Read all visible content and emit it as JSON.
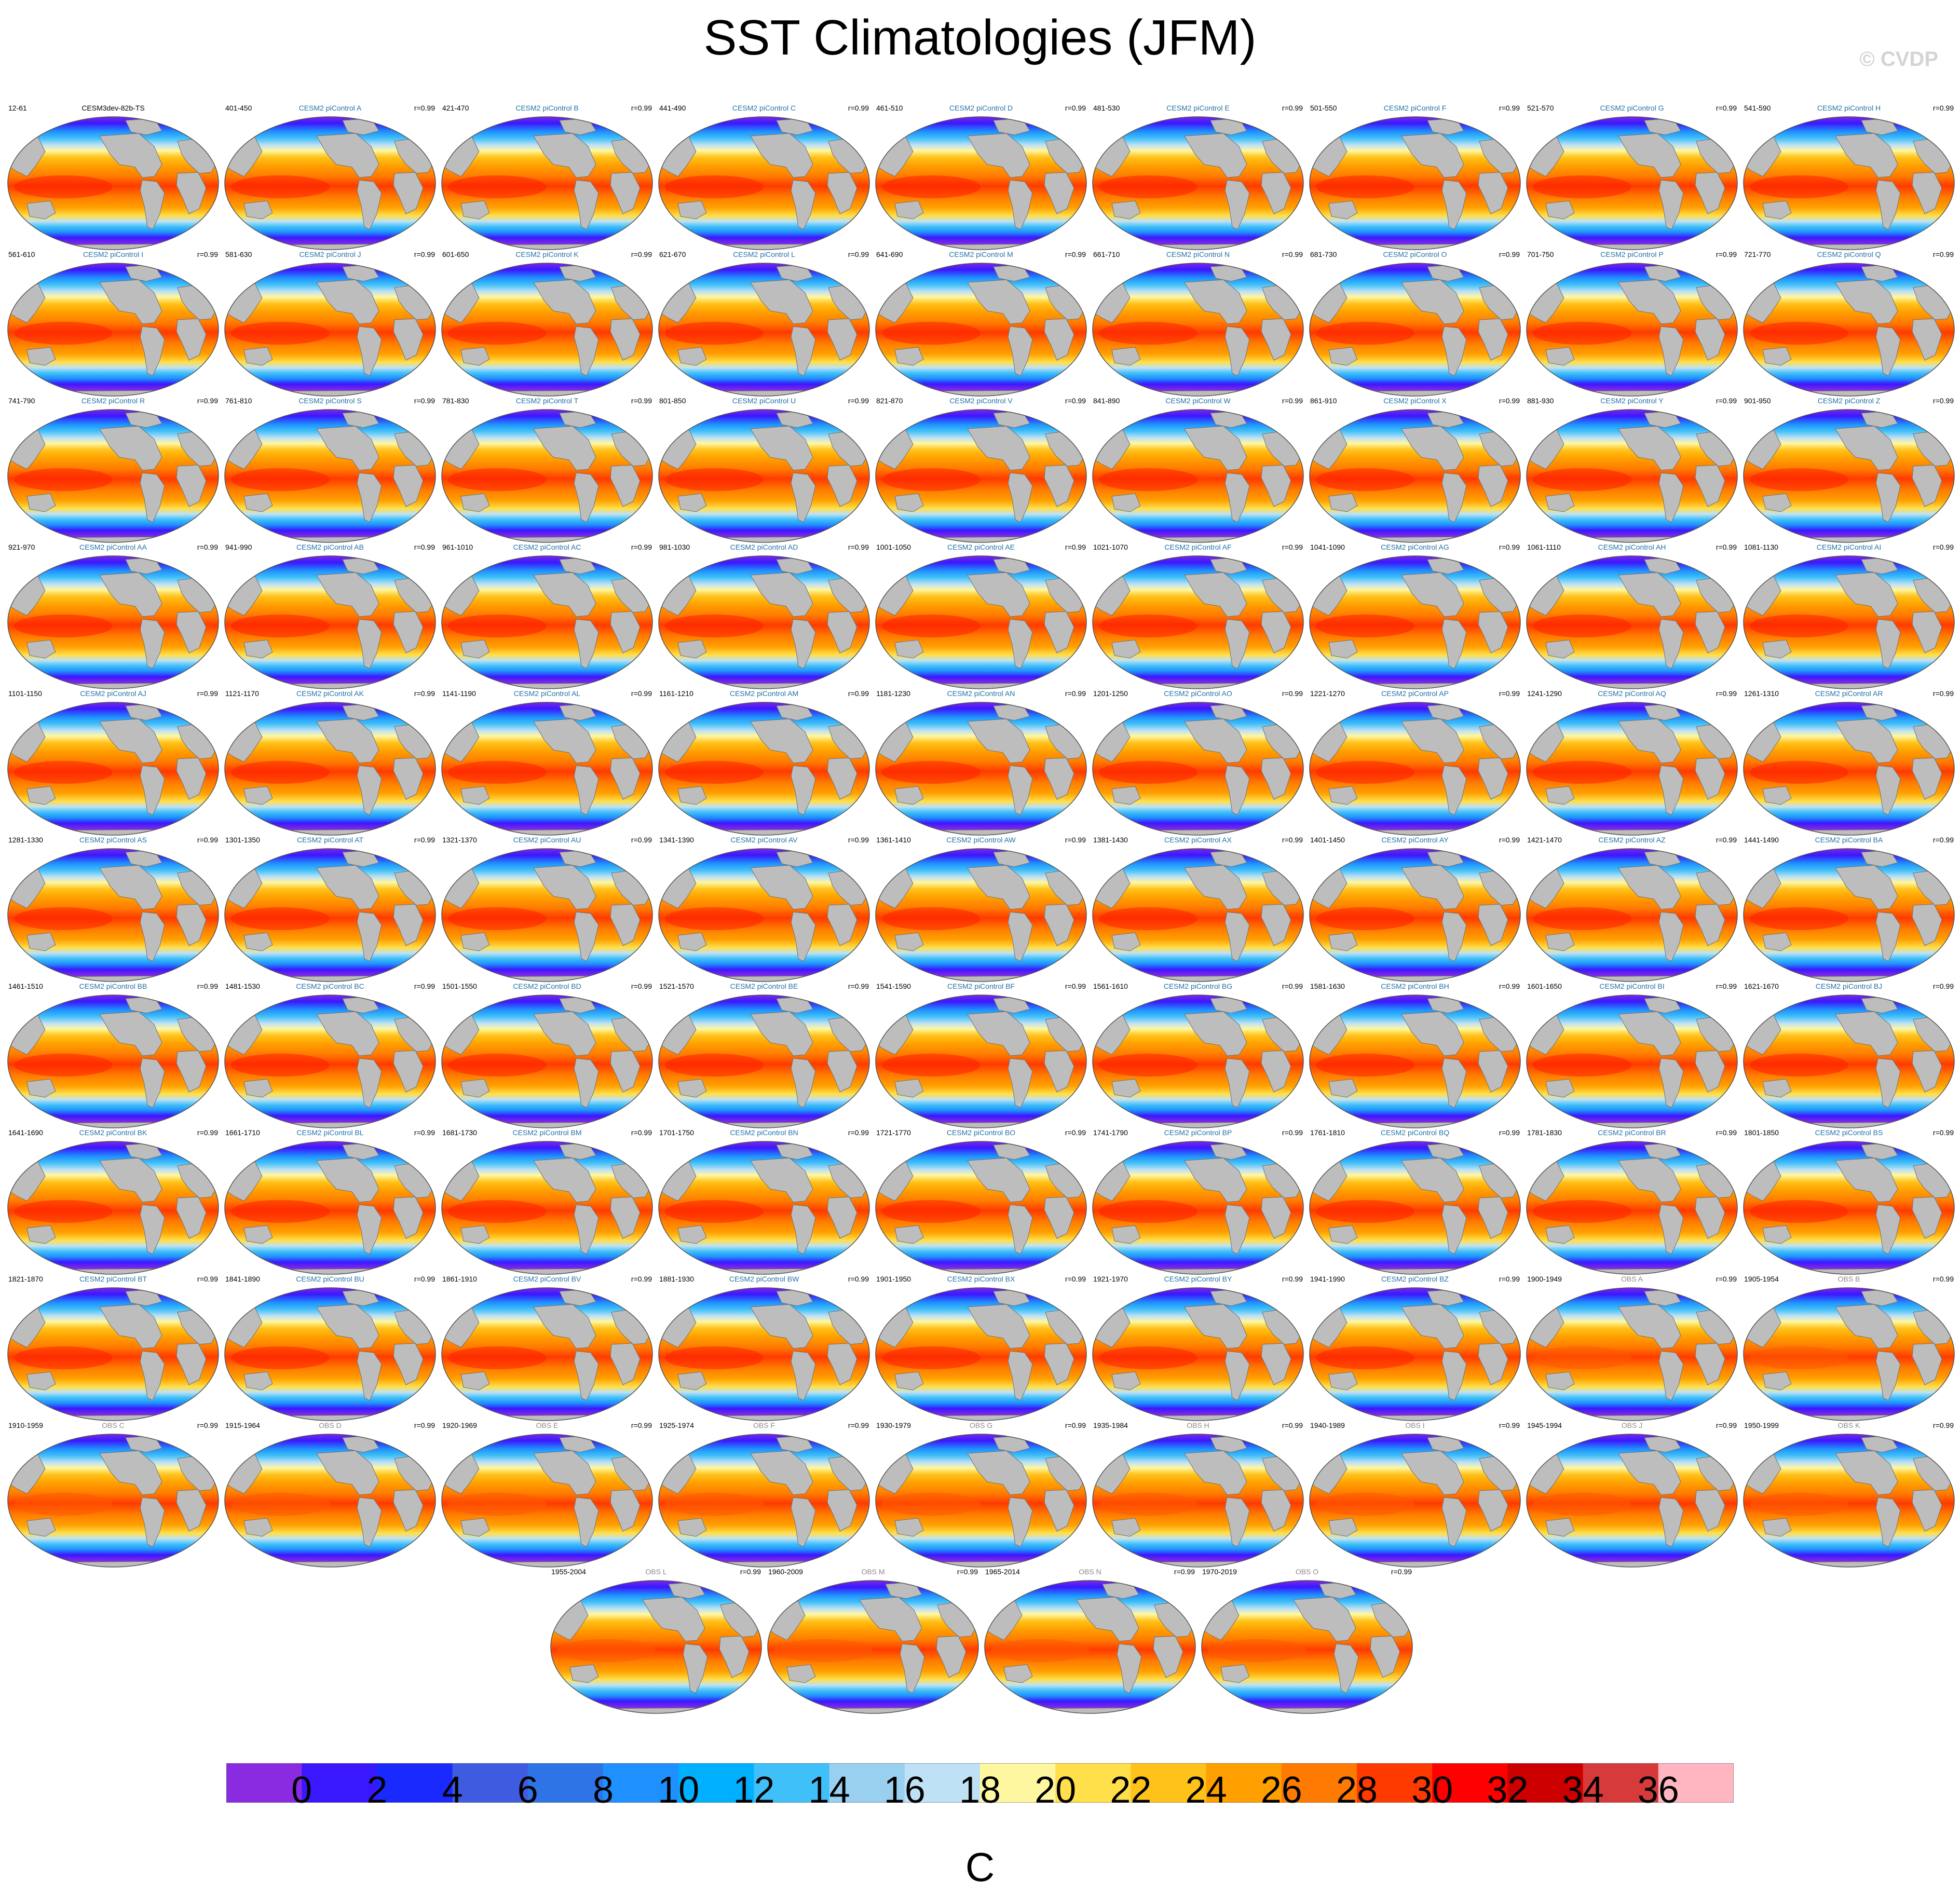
{
  "title": "SST Climatologies (JFM)",
  "copyright": "© CVDP",
  "chart_data": {
    "type": "map-panel-grid",
    "variable": "SST",
    "season": "JFM",
    "units": "C",
    "colorbar": {
      "ticks": [
        "0",
        "2",
        "4",
        "6",
        "8",
        "10",
        "12",
        "14",
        "16",
        "18",
        "20",
        "22",
        "24",
        "26",
        "28",
        "30",
        "32",
        "34",
        "36"
      ],
      "colors": [
        "#8a2be2",
        "#3a18ff",
        "#1a2aff",
        "#3f5be0",
        "#2f74e6",
        "#1e90ff",
        "#00b0ff",
        "#40c0f8",
        "#99d0ef",
        "#bfe1f5",
        "#fff7a0",
        "#ffe04a",
        "#ffc21a",
        "#ffa000",
        "#ff7a00",
        "#ff3a00",
        "#ff0000",
        "#cc0000",
        "#d63a3a",
        "#ffb6c1"
      ]
    },
    "panels": [
      {
        "name": "CESM3dev-82b-TS",
        "period": "12-61",
        "r": ""
      },
      {
        "name": "CESM2 piControl A",
        "period": "401-450",
        "r": "r=0.99"
      },
      {
        "name": "CESM2 piControl B",
        "period": "421-470",
        "r": "r=0.99"
      },
      {
        "name": "CESM2 piControl C",
        "period": "441-490",
        "r": "r=0.99"
      },
      {
        "name": "CESM2 piControl D",
        "period": "461-510",
        "r": "r=0.99"
      },
      {
        "name": "CESM2 piControl E",
        "period": "481-530",
        "r": "r=0.99"
      },
      {
        "name": "CESM2 piControl F",
        "period": "501-550",
        "r": "r=0.99"
      },
      {
        "name": "CESM2 piControl G",
        "period": "521-570",
        "r": "r=0.99"
      },
      {
        "name": "CESM2 piControl H",
        "period": "541-590",
        "r": "r=0.99"
      },
      {
        "name": "CESM2 piControl I",
        "period": "561-610",
        "r": "r=0.99"
      },
      {
        "name": "CESM2 piControl J",
        "period": "581-630",
        "r": "r=0.99"
      },
      {
        "name": "CESM2 piControl K",
        "period": "601-650",
        "r": "r=0.99"
      },
      {
        "name": "CESM2 piControl L",
        "period": "621-670",
        "r": "r=0.99"
      },
      {
        "name": "CESM2 piControl M",
        "period": "641-690",
        "r": "r=0.99"
      },
      {
        "name": "CESM2 piControl N",
        "period": "661-710",
        "r": "r=0.99"
      },
      {
        "name": "CESM2 piControl O",
        "period": "681-730",
        "r": "r=0.99"
      },
      {
        "name": "CESM2 piControl P",
        "period": "701-750",
        "r": "r=0.99"
      },
      {
        "name": "CESM2 piControl Q",
        "period": "721-770",
        "r": "r=0.99"
      },
      {
        "name": "CESM2 piControl R",
        "period": "741-790",
        "r": "r=0.99"
      },
      {
        "name": "CESM2 piControl S",
        "period": "761-810",
        "r": "r=0.99"
      },
      {
        "name": "CESM2 piControl T",
        "period": "781-830",
        "r": "r=0.99"
      },
      {
        "name": "CESM2 piControl U",
        "period": "801-850",
        "r": "r=0.99"
      },
      {
        "name": "CESM2 piControl V",
        "period": "821-870",
        "r": "r=0.99"
      },
      {
        "name": "CESM2 piControl W",
        "period": "841-890",
        "r": "r=0.99"
      },
      {
        "name": "CESM2 piControl X",
        "period": "861-910",
        "r": "r=0.99"
      },
      {
        "name": "CESM2 piControl Y",
        "period": "881-930",
        "r": "r=0.99"
      },
      {
        "name": "CESM2 piControl Z",
        "period": "901-950",
        "r": "r=0.99"
      },
      {
        "name": "CESM2 piControl AA",
        "period": "921-970",
        "r": "r=0.99"
      },
      {
        "name": "CESM2 piControl AB",
        "period": "941-990",
        "r": "r=0.99"
      },
      {
        "name": "CESM2 piControl AC",
        "period": "961-1010",
        "r": "r=0.99"
      },
      {
        "name": "CESM2 piControl AD",
        "period": "981-1030",
        "r": "r=0.99"
      },
      {
        "name": "CESM2 piControl AE",
        "period": "1001-1050",
        "r": "r=0.99"
      },
      {
        "name": "CESM2 piControl AF",
        "period": "1021-1070",
        "r": "r=0.99"
      },
      {
        "name": "CESM2 piControl AG",
        "period": "1041-1090",
        "r": "r=0.99"
      },
      {
        "name": "CESM2 piControl AH",
        "period": "1061-1110",
        "r": "r=0.99"
      },
      {
        "name": "CESM2 piControl AI",
        "period": "1081-1130",
        "r": "r=0.99"
      },
      {
        "name": "CESM2 piControl AJ",
        "period": "1101-1150",
        "r": "r=0.99"
      },
      {
        "name": "CESM2 piControl AK",
        "period": "1121-1170",
        "r": "r=0.99"
      },
      {
        "name": "CESM2 piControl AL",
        "period": "1141-1190",
        "r": "r=0.99"
      },
      {
        "name": "CESM2 piControl AM",
        "period": "1161-1210",
        "r": "r=0.99"
      },
      {
        "name": "CESM2 piControl AN",
        "period": "1181-1230",
        "r": "r=0.99"
      },
      {
        "name": "CESM2 piControl AO",
        "period": "1201-1250",
        "r": "r=0.99"
      },
      {
        "name": "CESM2 piControl AP",
        "period": "1221-1270",
        "r": "r=0.99"
      },
      {
        "name": "CESM2 piControl AQ",
        "period": "1241-1290",
        "r": "r=0.99"
      },
      {
        "name": "CESM2 piControl AR",
        "period": "1261-1310",
        "r": "r=0.99"
      },
      {
        "name": "CESM2 piControl AS",
        "period": "1281-1330",
        "r": "r=0.99"
      },
      {
        "name": "CESM2 piControl AT",
        "period": "1301-1350",
        "r": "r=0.99"
      },
      {
        "name": "CESM2 piControl AU",
        "period": "1321-1370",
        "r": "r=0.99"
      },
      {
        "name": "CESM2 piControl AV",
        "period": "1341-1390",
        "r": "r=0.99"
      },
      {
        "name": "CESM2 piControl AW",
        "period": "1361-1410",
        "r": "r=0.99"
      },
      {
        "name": "CESM2 piControl AX",
        "period": "1381-1430",
        "r": "r=0.99"
      },
      {
        "name": "CESM2 piControl AY",
        "period": "1401-1450",
        "r": "r=0.99"
      },
      {
        "name": "CESM2 piControl AZ",
        "period": "1421-1470",
        "r": "r=0.99"
      },
      {
        "name": "CESM2 piControl BA",
        "period": "1441-1490",
        "r": "r=0.99"
      },
      {
        "name": "CESM2 piControl BB",
        "period": "1461-1510",
        "r": "r=0.99"
      },
      {
        "name": "CESM2 piControl BC",
        "period": "1481-1530",
        "r": "r=0.99"
      },
      {
        "name": "CESM2 piControl BD",
        "period": "1501-1550",
        "r": "r=0.99"
      },
      {
        "name": "CESM2 piControl BE",
        "period": "1521-1570",
        "r": "r=0.99"
      },
      {
        "name": "CESM2 piControl BF",
        "period": "1541-1590",
        "r": "r=0.99"
      },
      {
        "name": "CESM2 piControl BG",
        "period": "1561-1610",
        "r": "r=0.99"
      },
      {
        "name": "CESM2 piControl BH",
        "period": "1581-1630",
        "r": "r=0.99"
      },
      {
        "name": "CESM2 piControl BI",
        "period": "1601-1650",
        "r": "r=0.99"
      },
      {
        "name": "CESM2 piControl BJ",
        "period": "1621-1670",
        "r": "r=0.99"
      },
      {
        "name": "CESM2 piControl BK",
        "period": "1641-1690",
        "r": "r=0.99"
      },
      {
        "name": "CESM2 piControl BL",
        "period": "1661-1710",
        "r": "r=0.99"
      },
      {
        "name": "CESM2 piControl BM",
        "period": "1681-1730",
        "r": "r=0.99"
      },
      {
        "name": "CESM2 piControl BN",
        "period": "1701-1750",
        "r": "r=0.99"
      },
      {
        "name": "CESM2 piControl BO",
        "period": "1721-1770",
        "r": "r=0.99"
      },
      {
        "name": "CESM2 piControl BP",
        "period": "1741-1790",
        "r": "r=0.99"
      },
      {
        "name": "CESM2 piControl BQ",
        "period": "1761-1810",
        "r": "r=0.99"
      },
      {
        "name": "CESM2 piControl BR",
        "period": "1781-1830",
        "r": "r=0.99"
      },
      {
        "name": "CESM2 piControl BS",
        "period": "1801-1850",
        "r": "r=0.99"
      },
      {
        "name": "CESM2 piControl BT",
        "period": "1821-1870",
        "r": "r=0.99"
      },
      {
        "name": "CESM2 piControl BU",
        "period": "1841-1890",
        "r": "r=0.99"
      },
      {
        "name": "CESM2 piControl BV",
        "period": "1861-1910",
        "r": "r=0.99"
      },
      {
        "name": "CESM2 piControl BW",
        "period": "1881-1930",
        "r": "r=0.99"
      },
      {
        "name": "CESM2 piControl BX",
        "period": "1901-1950",
        "r": "r=0.99"
      },
      {
        "name": "CESM2 piControl BY",
        "period": "1921-1970",
        "r": "r=0.99"
      },
      {
        "name": "CESM2 piControl BZ",
        "period": "1941-1990",
        "r": "r=0.99"
      },
      {
        "name": "OBS A",
        "period": "1900-1949",
        "r": "r=0.99"
      },
      {
        "name": "OBS B",
        "period": "1905-1954",
        "r": "r=0.99"
      },
      {
        "name": "OBS C",
        "period": "1910-1959",
        "r": "r=0.99"
      },
      {
        "name": "OBS D",
        "period": "1915-1964",
        "r": "r=0.99"
      },
      {
        "name": "OBS E",
        "period": "1920-1969",
        "r": "r=0.99"
      },
      {
        "name": "OBS F",
        "period": "1925-1974",
        "r": "r=0.99"
      },
      {
        "name": "OBS G",
        "period": "1930-1979",
        "r": "r=0.99"
      },
      {
        "name": "OBS H",
        "period": "1935-1984",
        "r": "r=0.99"
      },
      {
        "name": "OBS I",
        "period": "1940-1989",
        "r": "r=0.99"
      },
      {
        "name": "OBS J",
        "period": "1945-1994",
        "r": "r=0.99"
      },
      {
        "name": "OBS K",
        "period": "1950-1999",
        "r": "r=0.99"
      },
      {
        "name": "OBS L",
        "period": "1955-2004",
        "r": "r=0.99"
      },
      {
        "name": "OBS M",
        "period": "1960-2009",
        "r": "r=0.99"
      },
      {
        "name": "OBS N",
        "period": "1965-2014",
        "r": "r=0.99"
      },
      {
        "name": "OBS O",
        "period": "1970-2019",
        "r": "r=0.99"
      }
    ]
  }
}
